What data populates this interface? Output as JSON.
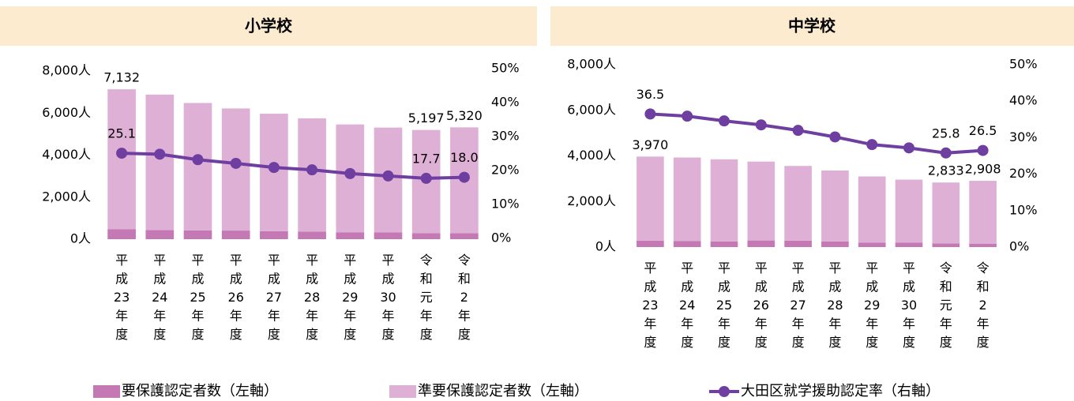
{
  "chart_data": [
    {
      "type": "bar",
      "title": "小学校",
      "categories": [
        "平成23年度",
        "平成24年度",
        "平成25年度",
        "平成26年度",
        "平成27年度",
        "平成28年度",
        "平成29年度",
        "平成30年度",
        "令和元年度",
        "令和2年度"
      ],
      "series": [
        {
          "name": "要保護認定者数（左軸）",
          "color": "#c478b4",
          "values": [
            470,
            430,
            420,
            410,
            380,
            360,
            330,
            320,
            290,
            280
          ]
        },
        {
          "name": "準要保護認定者数（左軸）",
          "color": "#dfb0d5",
          "values": [
            6662,
            6450,
            6060,
            5810,
            5590,
            5390,
            5130,
            4990,
            4907,
            5040
          ]
        },
        {
          "name": "大田区就学援助認定率（右軸）",
          "color": "#6e3ea0",
          "axis": "y2",
          "type": "line",
          "values": [
            25.1,
            24.8,
            23.2,
            22.1,
            20.9,
            20.2,
            19.1,
            18.4,
            17.7,
            18.0
          ],
          "value_labels": [
            "25.1",
            null,
            null,
            null,
            null,
            null,
            null,
            null,
            "17.7",
            "18.0"
          ]
        }
      ],
      "totals": [
        7132,
        null,
        null,
        null,
        null,
        null,
        null,
        null,
        5197,
        5320
      ],
      "total_labels": [
        "7,132",
        null,
        null,
        null,
        null,
        null,
        null,
        null,
        "5,197",
        "5,320"
      ],
      "ylim": [
        0,
        8000
      ],
      "yticks": [
        {
          "value": 0,
          "label": "0人"
        },
        {
          "value": 2000,
          "label": "2,000人"
        },
        {
          "value": 4000,
          "label": "4,000人"
        },
        {
          "value": 6000,
          "label": "6,000人"
        },
        {
          "value": 8000,
          "label": "8,000人"
        }
      ],
      "y2lim": [
        0,
        50
      ],
      "y2ticks": [
        {
          "value": 0,
          "label": "0%"
        },
        {
          "value": 10,
          "label": "10%"
        },
        {
          "value": 20,
          "label": "20%"
        },
        {
          "value": 30,
          "label": "30%"
        },
        {
          "value": 40,
          "label": "40%"
        },
        {
          "value": 50,
          "label": "50%"
        }
      ]
    },
    {
      "type": "bar",
      "title": "中学校",
      "categories": [
        "平成23年度",
        "平成24年度",
        "平成25年度",
        "平成26年度",
        "平成27年度",
        "平成28年度",
        "平成29年度",
        "平成30年度",
        "令和元年度",
        "令和2年度"
      ],
      "series": [
        {
          "color": "#c478b4",
          "values": [
            280,
            260,
            250,
            290,
            280,
            250,
            190,
            190,
            160,
            150
          ]
        },
        {
          "color": "#dfb0d5",
          "values": [
            3690,
            3670,
            3600,
            3460,
            3280,
            3110,
            2910,
            2770,
            2673,
            2758
          ]
        },
        {
          "color": "#6e3ea0",
          "axis": "y2",
          "type": "line",
          "values": [
            36.5,
            35.9,
            34.6,
            33.5,
            32.0,
            30.2,
            28.1,
            27.2,
            25.8,
            26.5
          ],
          "value_labels": [
            "36.5",
            null,
            null,
            null,
            null,
            null,
            null,
            null,
            "25.8",
            "26.5"
          ]
        }
      ],
      "totals": [
        3970,
        null,
        null,
        null,
        null,
        null,
        null,
        null,
        2833,
        2908
      ],
      "total_labels": [
        "3,970",
        null,
        null,
        null,
        null,
        null,
        null,
        null,
        "2,833",
        "2,908"
      ],
      "ylim": [
        0,
        8000
      ],
      "yticks": [
        {
          "value": 0,
          "label": "0人"
        },
        {
          "value": 2000,
          "label": "2,000人"
        },
        {
          "value": 4000,
          "label": "4,000人"
        },
        {
          "value": 6000,
          "label": "6,000人"
        },
        {
          "value": 8000,
          "label": "8,000人"
        }
      ],
      "y2lim": [
        0,
        50
      ],
      "y2ticks": [
        {
          "value": 0,
          "label": "0%"
        },
        {
          "value": 10,
          "label": "10%"
        },
        {
          "value": 20,
          "label": "20%"
        },
        {
          "value": 30,
          "label": "30%"
        },
        {
          "value": 40,
          "label": "40%"
        },
        {
          "value": 50,
          "label": "50%"
        }
      ]
    }
  ]
}
